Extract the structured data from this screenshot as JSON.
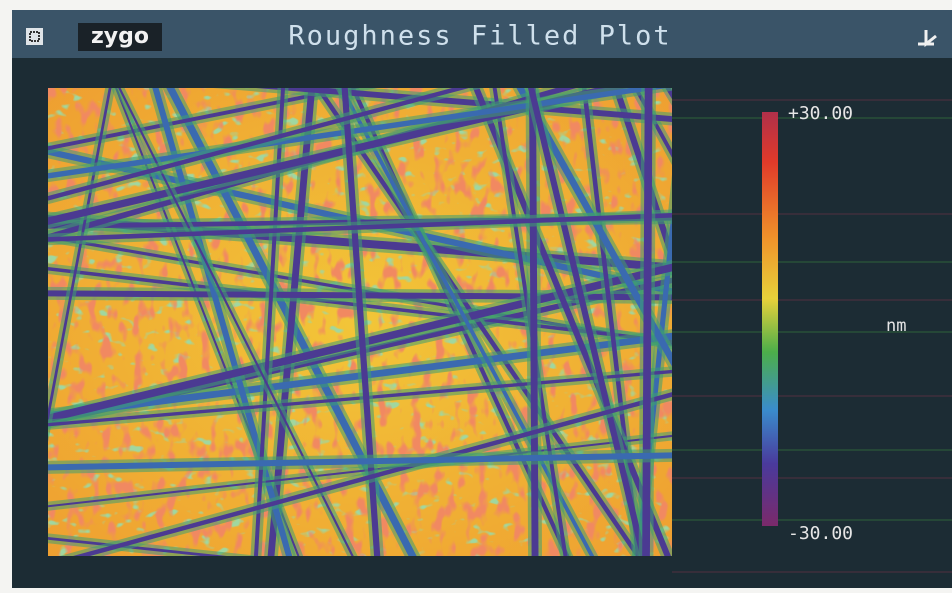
{
  "header": {
    "logo": "zygo",
    "title": "Roughness Filled Plot"
  },
  "colorbar": {
    "max_label": "+30.00",
    "min_label": "-30.00",
    "unit": "nm"
  }
}
